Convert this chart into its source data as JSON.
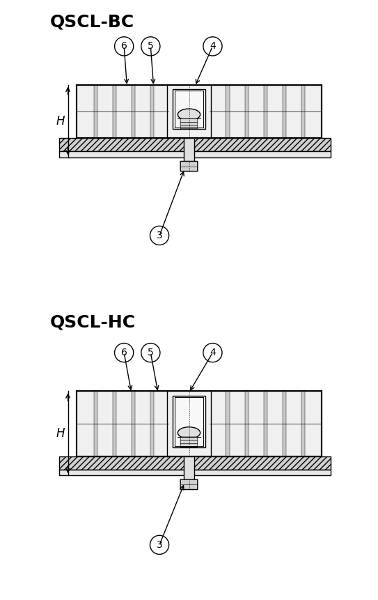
{
  "title_bc": "QSCL-BC",
  "title_hc": "QSCL-HC",
  "bg_color": "#ffffff",
  "line_color": "#000000",
  "hatch_color": "#000000",
  "grid_fill": "#e8e8e8",
  "label_font_size": 13,
  "title_font_size": 18
}
